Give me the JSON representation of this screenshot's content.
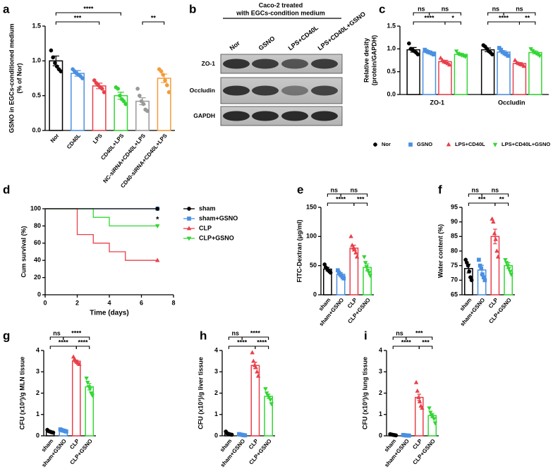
{
  "panel_b": {
    "panel": "b",
    "title": [
      "Caco-2 treated",
      "with EGCs-condition medium"
    ],
    "lanes": [
      "Nor",
      "GSNO",
      "LPS+CD40L",
      "LPS+CD40L+GSNO"
    ],
    "bands": [
      "ZO-1",
      "Occludin",
      "GAPDH"
    ]
  },
  "chart_data": [
    {
      "panel": "a",
      "type": "bar",
      "ylabel": [
        "GSNO in EGCs-conditioned medium",
        "(% of Nor)"
      ],
      "categories": [
        "Nor",
        "CD40L",
        "LPS",
        "CD40L+LPS",
        "NC-siRNA+CD40L+LPS",
        "CD40-siRNA+CD40L+LPS"
      ],
      "values": [
        1.0,
        0.82,
        0.64,
        0.5,
        0.42,
        0.75
      ],
      "errors": [
        0.07,
        0.04,
        0.04,
        0.05,
        0.05,
        0.06
      ],
      "points": [
        [
          1.15,
          1.05,
          0.97,
          0.92,
          0.88,
          0.85
        ],
        [
          0.88,
          0.85,
          0.82,
          0.8,
          0.78,
          0.75
        ],
        [
          0.72,
          0.68,
          0.65,
          0.62,
          0.6,
          0.55
        ],
        [
          0.62,
          0.6,
          0.5,
          0.45,
          0.42,
          0.38
        ],
        [
          0.6,
          0.5,
          0.42,
          0.38,
          0.3,
          0.28
        ],
        [
          0.88,
          0.85,
          0.8,
          0.72,
          0.65,
          0.55
        ]
      ],
      "colors": [
        "#000000",
        "#4a90e2",
        "#e8404b",
        "#33d633",
        "#999999",
        "#f39c39"
      ],
      "markers": [
        "circle",
        "circle",
        "circle",
        "circle",
        "circle",
        "circle"
      ],
      "ylim": [
        0,
        1.5
      ],
      "yticks": [
        {
          "value": 0,
          "label": "0.0"
        },
        {
          "value": 0.5,
          "label": "0.5"
        },
        {
          "value": 1,
          "label": "1.0"
        },
        {
          "value": 1.5,
          "label": "1.5"
        }
      ],
      "brackets": [
        [
          {
            "from": 0,
            "to": 2,
            "label": "***"
          },
          {
            "from": 4,
            "to": 5,
            "label": "**"
          }
        ],
        [
          {
            "from": 0,
            "to": 3,
            "label": "****"
          }
        ]
      ]
    },
    {
      "panel": "c",
      "type": "grouped_bar",
      "ylabel": [
        "Relative desity",
        "(protein/GAPDH)"
      ],
      "categories": [
        "ZO-1",
        "Occludin"
      ],
      "series": [
        {
          "name": "Nor",
          "color": "#000000",
          "marker": "circle",
          "values": [
            0.98,
            0.98
          ],
          "errors": [
            0.05,
            0.04
          ],
          "points": [
            [
              1.12,
              1.0,
              0.98,
              0.95,
              0.92,
              0.88
            ],
            [
              1.08,
              1.05,
              1.0,
              0.95,
              0.92,
              0.88
            ]
          ]
        },
        {
          "name": "GSNO",
          "color": "#4a90e2",
          "marker": "square",
          "values": [
            0.93,
            0.93
          ],
          "errors": [
            0.02,
            0.03
          ],
          "points": [
            [
              0.98,
              0.95,
              0.93,
              0.92,
              0.9,
              0.88
            ],
            [
              1.02,
              0.98,
              0.93,
              0.9,
              0.88,
              0.85
            ]
          ]
        },
        {
          "name": "LPS+CD40L",
          "color": "#e8404b",
          "marker": "triangle",
          "values": [
            0.72,
            0.68
          ],
          "errors": [
            0.03,
            0.02
          ],
          "points": [
            [
              0.8,
              0.75,
              0.72,
              0.7,
              0.68,
              0.65
            ],
            [
              0.75,
              0.7,
              0.68,
              0.66,
              0.65,
              0.62
            ]
          ]
        },
        {
          "name": "LPS+CD40L+GSNO",
          "color": "#33d633",
          "marker": "down",
          "values": [
            0.88,
            0.92
          ],
          "errors": [
            0.02,
            0.03
          ],
          "points": [
            [
              0.95,
              0.9,
              0.88,
              0.86,
              0.85,
              0.83
            ],
            [
              1.0,
              0.96,
              0.93,
              0.9,
              0.88,
              0.85
            ]
          ]
        }
      ],
      "ylim": [
        0,
        1.5
      ],
      "yticks": [
        {
          "value": 0,
          "label": "0.0"
        },
        {
          "value": 0.5,
          "label": "0.5"
        },
        {
          "value": 1,
          "label": "1.0"
        },
        {
          "value": 1.5,
          "label": "1.5"
        }
      ],
      "brackets": [
        [
          [
            {
              "from": 0,
              "to": 2,
              "label": "****"
            },
            {
              "from": 2,
              "to": 3,
              "label": "*"
            }
          ],
          [
            {
              "from": 0,
              "to": 1,
              "label": "ns"
            },
            {
              "from": 1,
              "to": 3,
              "label": "ns"
            }
          ]
        ],
        [
          [
            {
              "from": 0,
              "to": 2,
              "label": "****"
            },
            {
              "from": 2,
              "to": 3,
              "label": "**"
            }
          ],
          [
            {
              "from": 0,
              "to": 1,
              "label": "ns"
            },
            {
              "from": 1,
              "to": 3,
              "label": "ns"
            }
          ]
        ]
      ]
    },
    {
      "panel": "d",
      "type": "line",
      "xlabel": "Time (days)",
      "ylabel": "Cum survival (%)",
      "annotation": "*",
      "series": [
        {
          "name": "sham",
          "color": "#000000",
          "marker": "circle",
          "x": [
            0,
            7
          ],
          "values": [
            100,
            100
          ]
        },
        {
          "name": "sham+GSNO",
          "color": "#4a90e2",
          "marker": "square",
          "x": [
            0,
            7
          ],
          "values": [
            100,
            100
          ]
        },
        {
          "name": "CLP",
          "color": "#e8404b",
          "marker": "triangle",
          "x": [
            0,
            2,
            2,
            3,
            3,
            4,
            4,
            5,
            5,
            7
          ],
          "values": [
            100,
            100,
            70,
            70,
            60,
            60,
            50,
            50,
            40,
            40
          ]
        },
        {
          "name": "CLP+GSNO",
          "color": "#33d633",
          "marker": "down",
          "x": [
            0,
            3,
            3,
            4,
            4,
            7
          ],
          "values": [
            100,
            100,
            90,
            90,
            80,
            80
          ]
        }
      ],
      "xlim": [
        0,
        8
      ],
      "xticks": [
        0,
        2,
        4,
        6,
        8
      ],
      "ylim": [
        0,
        100
      ],
      "yticks": [
        0,
        20,
        40,
        60,
        80,
        100
      ]
    },
    {
      "panel": "e",
      "type": "bar",
      "ylabel": "FITC-Dextran (μg/ml)",
      "categories": [
        "sham",
        "sham+GSNO",
        "CLP",
        "CLP+GSNO"
      ],
      "values": [
        44,
        35,
        80,
        47
      ],
      "errors": [
        3,
        3,
        5,
        6
      ],
      "points": [
        [
          52,
          47,
          45,
          42,
          40,
          38
        ],
        [
          42,
          38,
          35,
          33,
          30,
          28
        ],
        [
          100,
          85,
          80,
          78,
          72,
          65
        ],
        [
          65,
          55,
          48,
          42,
          38,
          33
        ]
      ],
      "colors": [
        "#000000",
        "#4a90e2",
        "#e8404b",
        "#33d633"
      ],
      "markers": [
        "circle",
        "square",
        "triangle",
        "down"
      ],
      "ylim": [
        0,
        150
      ],
      "yticks": [
        0,
        50,
        100,
        150
      ],
      "brackets": [
        [
          {
            "from": 0,
            "to": 2,
            "label": "****"
          },
          {
            "from": 2,
            "to": 3,
            "label": "***"
          }
        ],
        [
          {
            "from": 0,
            "to": 1,
            "label": "ns"
          },
          {
            "from": 1,
            "to": 3,
            "label": "ns"
          }
        ]
      ]
    },
    {
      "panel": "f",
      "type": "bar",
      "ylabel": "Water content (%)",
      "categories": [
        "sham",
        "sham+GSNO",
        "CLP",
        "CLP+GSNO"
      ],
      "values": [
        74,
        73.5,
        85,
        75
      ],
      "errors": [
        1.5,
        1.6,
        2.5,
        1
      ],
      "points": [
        [
          77,
          76,
          75,
          73,
          71,
          70
        ],
        [
          77,
          75,
          74,
          72,
          71,
          70
        ],
        [
          91,
          90,
          86,
          84,
          80,
          78
        ],
        [
          77,
          76,
          75,
          74,
          73,
          72
        ]
      ],
      "colors": [
        "#000000",
        "#4a90e2",
        "#e8404b",
        "#33d633"
      ],
      "markers": [
        "circle",
        "square",
        "triangle",
        "down"
      ],
      "ylim": [
        65,
        95
      ],
      "yticks": [
        65,
        70,
        75,
        80,
        85,
        90,
        95
      ],
      "brackets": [
        [
          {
            "from": 0,
            "to": 2,
            "label": "***"
          },
          {
            "from": 2,
            "to": 3,
            "label": "**"
          }
        ],
        [
          {
            "from": 0,
            "to": 1,
            "label": "ns"
          },
          {
            "from": 1,
            "to": 3,
            "label": "ns"
          }
        ]
      ]
    },
    {
      "panel": "g",
      "type": "bar",
      "ylabel": "CFU (x10³)/g MLN tissue",
      "categories": [
        "sham",
        "sham+GSNO",
        "CLP",
        "CLP+GSNO"
      ],
      "values": [
        0.2,
        0.25,
        3.5,
        2.3
      ],
      "errors": [
        0.03,
        0.02,
        0.05,
        0.15
      ],
      "points": [
        [
          0.28,
          0.22,
          0.2,
          0.18,
          0.16,
          0.15
        ],
        [
          0.3,
          0.27,
          0.25,
          0.24,
          0.22,
          0.2
        ],
        [
          3.7,
          3.6,
          3.5,
          3.45,
          3.4,
          3.35
        ],
        [
          2.7,
          2.5,
          2.3,
          2.2,
          2.0,
          1.9
        ]
      ],
      "colors": [
        "#000000",
        "#4a90e2",
        "#e8404b",
        "#33d633"
      ],
      "markers": [
        "circle",
        "square",
        "triangle",
        "down"
      ],
      "ylim": [
        0,
        4
      ],
      "yticks": [
        0,
        1,
        2,
        3,
        4
      ],
      "brackets": [
        [
          {
            "from": 0,
            "to": 2,
            "label": "****"
          },
          {
            "from": 2,
            "to": 3,
            "label": "****"
          }
        ],
        [
          {
            "from": 0,
            "to": 1,
            "label": "ns"
          },
          {
            "from": 1,
            "to": 3,
            "label": "****"
          }
        ]
      ]
    },
    {
      "panel": "h",
      "type": "bar",
      "ylabel": "CFU (x10³)/g liver tissue",
      "categories": [
        "sham",
        "sham+GSNO",
        "CLP",
        "CLP+GSNO"
      ],
      "values": [
        0.1,
        0.05,
        3.3,
        1.85
      ],
      "errors": [
        0.03,
        0.01,
        0.15,
        0.1
      ],
      "points": [
        [
          0.2,
          0.12,
          0.1,
          0.08,
          0.06,
          0.05
        ],
        [
          0.08,
          0.06,
          0.05,
          0.04,
          0.03,
          0.02
        ],
        [
          3.9,
          3.5,
          3.3,
          3.2,
          3.0,
          2.8
        ],
        [
          2.2,
          2.0,
          1.9,
          1.8,
          1.7,
          1.5
        ]
      ],
      "colors": [
        "#000000",
        "#4a90e2",
        "#e8404b",
        "#33d633"
      ],
      "markers": [
        "circle",
        "square",
        "triangle",
        "down"
      ],
      "ylim": [
        0,
        4
      ],
      "yticks": [
        0,
        1,
        2,
        3,
        4
      ],
      "brackets": [
        [
          {
            "from": 0,
            "to": 2,
            "label": "****"
          },
          {
            "from": 2,
            "to": 3,
            "label": "****"
          }
        ],
        [
          {
            "from": 0,
            "to": 1,
            "label": "ns"
          },
          {
            "from": 1,
            "to": 3,
            "label": "****"
          }
        ]
      ]
    },
    {
      "panel": "i",
      "type": "bar",
      "ylabel": "CFU (x10³)/g lung tissue",
      "categories": [
        "sham",
        "sham+GSNO",
        "CLP",
        "CLP+GSNO"
      ],
      "values": [
        0.05,
        0.02,
        1.8,
        0.95
      ],
      "errors": [
        0.01,
        0.005,
        0.15,
        0.1
      ],
      "points": [
        [
          0.08,
          0.06,
          0.05,
          0.04,
          0.03,
          0.02
        ],
        [
          0.04,
          0.03,
          0.02,
          0.02,
          0.01,
          0.01
        ],
        [
          2.5,
          2.1,
          1.8,
          1.6,
          1.4,
          1.3
        ],
        [
          1.3,
          1.1,
          0.95,
          0.9,
          0.8,
          0.6
        ]
      ],
      "colors": [
        "#000000",
        "#4a90e2",
        "#e8404b",
        "#33d633"
      ],
      "markers": [
        "circle",
        "square",
        "triangle",
        "down"
      ],
      "ylim": [
        0,
        4
      ],
      "yticks": [
        0,
        1,
        2,
        3,
        4
      ],
      "brackets": [
        [
          {
            "from": 0,
            "to": 2,
            "label": "****"
          },
          {
            "from": 2,
            "to": 3,
            "label": "***"
          }
        ],
        [
          {
            "from": 0,
            "to": 1,
            "label": "ns"
          },
          {
            "from": 1,
            "to": 3,
            "label": "***"
          }
        ]
      ]
    }
  ]
}
